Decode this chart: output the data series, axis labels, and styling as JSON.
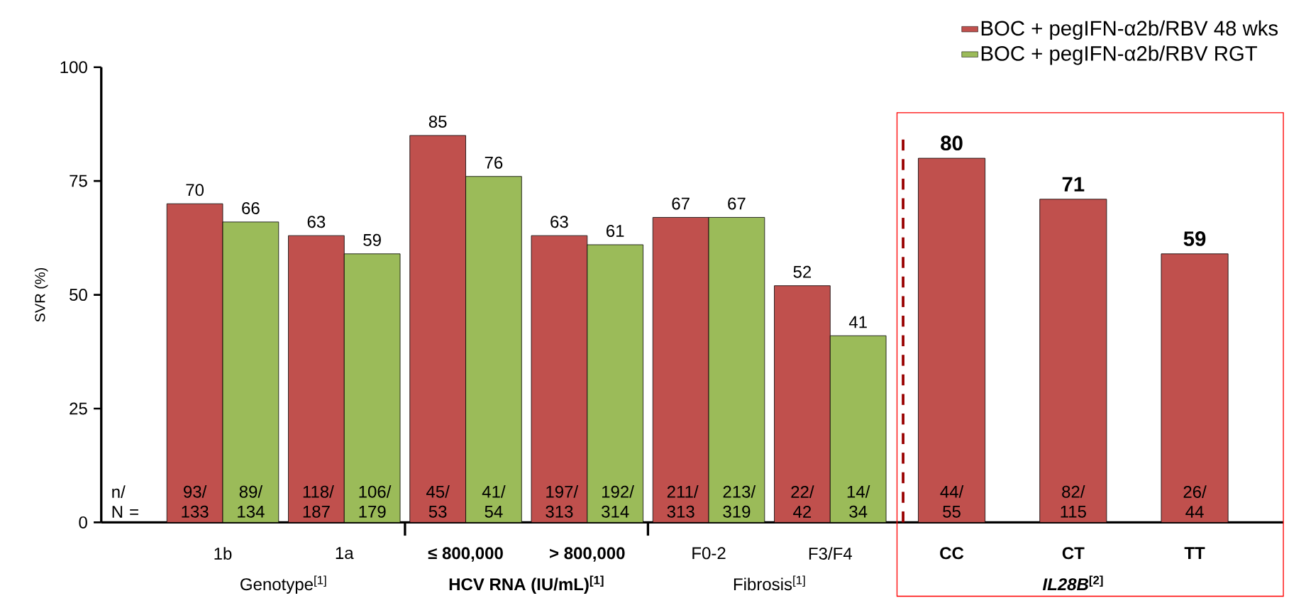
{
  "chart_data": {
    "type": "bar",
    "ylabel": "SVR (%)",
    "categories": [
      "1b",
      "1a",
      "≤ 800,000",
      "> 800,000",
      "F0-2",
      "F3/F4",
      "CC",
      "CT",
      "TT"
    ],
    "series": [
      {
        "name": "BOC + pegIFN-α2b/RBV 48 wks",
        "color": "#c0504d",
        "values": [
          70,
          63,
          85,
          63,
          67,
          52,
          80,
          71,
          59
        ]
      },
      {
        "name": "BOC + pegIFN-α2b/RBV RGT",
        "color": "#9bbb59",
        "values": [
          66,
          59,
          76,
          61,
          67,
          41,
          null,
          null,
          null
        ]
      }
    ],
    "ylim": [
      0,
      100
    ],
    "yticks": [
      0,
      25,
      50,
      75,
      100
    ],
    "data_labels": true,
    "legend": "top right",
    "grid": false,
    "annotations": [
      "Genotype$^{[1]}$",
      "**HCV RNA (IU/mL)$^{[1]}$**",
      "Fibrosis$^{[1]}$",
      "***IL28B*$^{[2]}$**",
      "n/ N =",
      "93/ 133",
      "89/ 134",
      "118/ 187",
      "106/ 179",
      "45/ 53",
      "41/ 54",
      "197/ 313",
      "192/ 314",
      "211/ 313",
      "213/ 319",
      "22/ 42",
      "14/ 34",
      "44/ 55",
      "82/ 115",
      "26/ 44"
    ]
  }
}
